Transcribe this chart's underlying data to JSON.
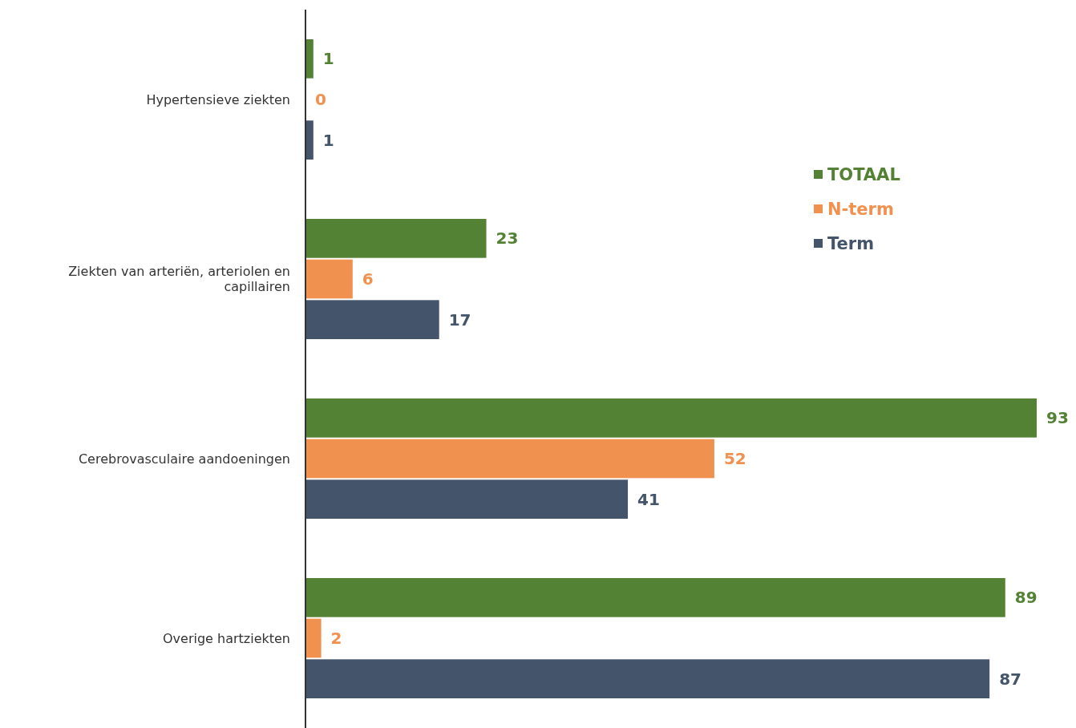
{
  "chart_data": {
    "type": "bar",
    "orientation": "horizontal",
    "categories": [
      "Hypertensieve ziekten",
      "Ziekten van arteriën, arteriolen en capillairen",
      "Cerebrovasculaire aandoeningen",
      "Overige hartziekten"
    ],
    "series": [
      {
        "name": "TOTAAL",
        "color": "#548235",
        "values": [
          1,
          23,
          93,
          89
        ]
      },
      {
        "name": "N-term",
        "color": "#f0914f",
        "values": [
          0,
          6,
          52,
          2
        ]
      },
      {
        "name": "Term",
        "color": "#44546a",
        "values": [
          1,
          17,
          41,
          87
        ]
      }
    ],
    "data_labels": true,
    "legend": "top right"
  }
}
